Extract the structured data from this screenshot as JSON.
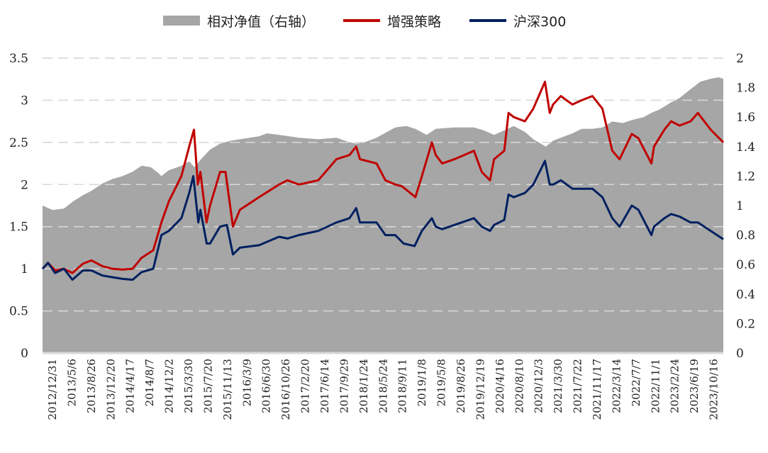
{
  "legend": [
    {
      "label": "相对净值（右轴）",
      "kind": "area",
      "color": "#a6a6a6"
    },
    {
      "label": "增强策略",
      "kind": "line",
      "color": "#c00000"
    },
    {
      "label": "沪深300",
      "kind": "line",
      "color": "#002060"
    }
  ],
  "chart_data": {
    "type": "line",
    "x_axis": {
      "type": "date",
      "range": [
        "2012-12-31",
        "2023-12-29"
      ],
      "tick_labels": [
        "2012/12/31",
        "2013/5/6",
        "2013/8/26",
        "2013/12/20",
        "2014/4/17",
        "2014/8/7",
        "2014/12/2",
        "2015/3/30",
        "2015/7/20",
        "2015/11/13",
        "2016/3/9",
        "2016/6/30",
        "2016/10/26",
        "2017/2/20",
        "2017/6/14",
        "2017/9/29",
        "2018/1/24",
        "2018/5/24",
        "2018/9/11",
        "2019/1/8",
        "2019/5/8",
        "2019/8/26",
        "2019/12/19",
        "2020/4/16",
        "2020/8/10",
        "2020/12/3",
        "2021/3/30",
        "2021/7/22",
        "2021/11/17",
        "2022/3/14",
        "2022/7/7",
        "2022/11/1",
        "2023/2/24",
        "2023/6/19",
        "2023/10/16"
      ]
    },
    "y_left": {
      "range": [
        0,
        3.5
      ],
      "ticks": [
        "0",
        "0.5",
        "1",
        "1.5",
        "2",
        "2.5",
        "3",
        "3.5"
      ]
    },
    "y_right": {
      "range": [
        0,
        2
      ],
      "ticks": [
        "0",
        "0.2",
        "0.4",
        "0.6",
        "0.8",
        "1",
        "1.2",
        "1.4",
        "1.6",
        "1.8",
        "2"
      ]
    },
    "grid": "horizontal dashed",
    "legend_position": "top",
    "series": [
      {
        "name": "相对净值（右轴）",
        "kind": "area",
        "axis": "right",
        "color": "#a6a6a6",
        "points": [
          [
            "2012-12-31",
            1.0
          ],
          [
            "2013-03-01",
            0.97
          ],
          [
            "2013-05-06",
            0.98
          ],
          [
            "2013-07-01",
            1.03
          ],
          [
            "2013-08-26",
            1.07
          ],
          [
            "2013-10-15",
            1.1
          ],
          [
            "2013-12-20",
            1.15
          ],
          [
            "2014-02-15",
            1.18
          ],
          [
            "2014-04-17",
            1.2
          ],
          [
            "2014-06-15",
            1.23
          ],
          [
            "2014-08-07",
            1.27
          ],
          [
            "2014-10-01",
            1.26
          ],
          [
            "2014-11-15",
            1.22
          ],
          [
            "2014-12-02",
            1.2
          ],
          [
            "2015-01-15",
            1.24
          ],
          [
            "2015-03-30",
            1.27
          ],
          [
            "2015-05-15",
            1.3
          ],
          [
            "2015-06-15",
            1.26
          ],
          [
            "2015-07-20",
            1.31
          ],
          [
            "2015-09-15",
            1.38
          ],
          [
            "2015-11-13",
            1.42
          ],
          [
            "2016-01-15",
            1.44
          ],
          [
            "2016-03-09",
            1.45
          ],
          [
            "2016-06-30",
            1.47
          ],
          [
            "2016-08-15",
            1.49
          ],
          [
            "2016-10-26",
            1.48
          ],
          [
            "2017-02-20",
            1.46
          ],
          [
            "2017-06-14",
            1.45
          ],
          [
            "2017-09-29",
            1.46
          ],
          [
            "2017-12-15",
            1.43
          ],
          [
            "2018-01-24",
            1.42
          ],
          [
            "2018-03-15",
            1.43
          ],
          [
            "2018-05-24",
            1.46
          ],
          [
            "2018-09-11",
            1.53
          ],
          [
            "2018-11-15",
            1.54
          ],
          [
            "2019-01-08",
            1.52
          ],
          [
            "2019-03-15",
            1.48
          ],
          [
            "2019-05-08",
            1.52
          ],
          [
            "2019-08-26",
            1.53
          ],
          [
            "2019-12-19",
            1.53
          ],
          [
            "2020-02-15",
            1.51
          ],
          [
            "2020-04-16",
            1.48
          ],
          [
            "2020-06-15",
            1.51
          ],
          [
            "2020-08-10",
            1.54
          ],
          [
            "2020-10-15",
            1.5
          ],
          [
            "2020-12-03",
            1.45
          ],
          [
            "2021-02-15",
            1.4
          ],
          [
            "2021-03-30",
            1.44
          ],
          [
            "2021-05-15",
            1.46
          ],
          [
            "2021-07-22",
            1.49
          ],
          [
            "2021-09-15",
            1.52
          ],
          [
            "2021-11-17",
            1.52
          ],
          [
            "2022-01-15",
            1.53
          ],
          [
            "2022-03-14",
            1.57
          ],
          [
            "2022-05-15",
            1.56
          ],
          [
            "2022-07-07",
            1.58
          ],
          [
            "2022-09-15",
            1.6
          ],
          [
            "2022-11-01",
            1.63
          ],
          [
            "2022-12-15",
            1.65
          ],
          [
            "2023-02-24",
            1.7
          ],
          [
            "2023-04-15",
            1.73
          ],
          [
            "2023-06-19",
            1.79
          ],
          [
            "2023-08-15",
            1.84
          ],
          [
            "2023-10-16",
            1.86
          ],
          [
            "2023-12-01",
            1.87
          ],
          [
            "2023-12-29",
            1.86
          ]
        ]
      },
      {
        "name": "增强策略",
        "kind": "line",
        "axis": "left",
        "color": "#c00000",
        "points": [
          [
            "2012-12-31",
            1.0
          ],
          [
            "2013-02-01",
            1.07
          ],
          [
            "2013-03-15",
            0.98
          ],
          [
            "2013-05-06",
            1.0
          ],
          [
            "2013-06-25",
            0.95
          ],
          [
            "2013-08-26",
            1.06
          ],
          [
            "2013-10-15",
            1.1
          ],
          [
            "2013-12-20",
            1.03
          ],
          [
            "2014-02-15",
            1.0
          ],
          [
            "2014-04-17",
            0.99
          ],
          [
            "2014-06-15",
            1.0
          ],
          [
            "2014-08-07",
            1.13
          ],
          [
            "2014-10-15",
            1.22
          ],
          [
            "2014-12-02",
            1.55
          ],
          [
            "2015-01-15",
            1.8
          ],
          [
            "2015-03-30",
            2.1
          ],
          [
            "2015-05-15",
            2.45
          ],
          [
            "2015-06-12",
            2.65
          ],
          [
            "2015-07-05",
            2.0
          ],
          [
            "2015-07-20",
            2.15
          ],
          [
            "2015-08-25",
            1.55
          ],
          [
            "2015-09-15",
            1.75
          ],
          [
            "2015-11-13",
            2.15
          ],
          [
            "2015-12-15",
            2.15
          ],
          [
            "2016-01-28",
            1.5
          ],
          [
            "2016-03-09",
            1.7
          ],
          [
            "2016-06-30",
            1.85
          ],
          [
            "2016-10-26",
            2.0
          ],
          [
            "2016-12-15",
            2.05
          ],
          [
            "2017-02-20",
            2.0
          ],
          [
            "2017-06-14",
            2.05
          ],
          [
            "2017-09-29",
            2.3
          ],
          [
            "2017-12-15",
            2.35
          ],
          [
            "2018-01-24",
            2.45
          ],
          [
            "2018-02-15",
            2.3
          ],
          [
            "2018-05-24",
            2.25
          ],
          [
            "2018-07-15",
            2.05
          ],
          [
            "2018-09-11",
            2.0
          ],
          [
            "2018-10-20",
            1.98
          ],
          [
            "2019-01-08",
            1.85
          ],
          [
            "2019-02-15",
            2.1
          ],
          [
            "2019-04-15",
            2.5
          ],
          [
            "2019-05-08",
            2.35
          ],
          [
            "2019-06-15",
            2.25
          ],
          [
            "2019-08-26",
            2.3
          ],
          [
            "2019-12-19",
            2.4
          ],
          [
            "2020-02-03",
            2.15
          ],
          [
            "2020-03-23",
            2.05
          ],
          [
            "2020-04-16",
            2.3
          ],
          [
            "2020-06-15",
            2.4
          ],
          [
            "2020-07-10",
            2.85
          ],
          [
            "2020-08-10",
            2.8
          ],
          [
            "2020-10-15",
            2.75
          ],
          [
            "2020-12-03",
            2.9
          ],
          [
            "2021-02-10",
            3.22
          ],
          [
            "2021-03-10",
            2.85
          ],
          [
            "2021-03-30",
            2.95
          ],
          [
            "2021-05-15",
            3.05
          ],
          [
            "2021-07-22",
            2.95
          ],
          [
            "2021-09-15",
            3.0
          ],
          [
            "2021-11-17",
            3.05
          ],
          [
            "2022-01-15",
            2.9
          ],
          [
            "2022-03-14",
            2.4
          ],
          [
            "2022-04-26",
            2.3
          ],
          [
            "2022-07-07",
            2.6
          ],
          [
            "2022-08-15",
            2.55
          ],
          [
            "2022-10-31",
            2.25
          ],
          [
            "2022-11-15",
            2.45
          ],
          [
            "2023-01-15",
            2.65
          ],
          [
            "2023-02-24",
            2.75
          ],
          [
            "2023-04-15",
            2.7
          ],
          [
            "2023-06-19",
            2.75
          ],
          [
            "2023-08-01",
            2.85
          ],
          [
            "2023-10-16",
            2.65
          ],
          [
            "2023-12-29",
            2.5
          ]
        ]
      },
      {
        "name": "沪深300",
        "kind": "line",
        "axis": "left",
        "color": "#002060",
        "points": [
          [
            "2012-12-31",
            1.0
          ],
          [
            "2013-02-01",
            1.07
          ],
          [
            "2013-03-15",
            0.95
          ],
          [
            "2013-05-06",
            1.0
          ],
          [
            "2013-06-25",
            0.87
          ],
          [
            "2013-08-26",
            0.98
          ],
          [
            "2013-10-15",
            0.98
          ],
          [
            "2013-12-20",
            0.92
          ],
          [
            "2014-02-15",
            0.9
          ],
          [
            "2014-04-17",
            0.88
          ],
          [
            "2014-06-15",
            0.87
          ],
          [
            "2014-08-07",
            0.96
          ],
          [
            "2014-10-15",
            1.0
          ],
          [
            "2014-12-02",
            1.4
          ],
          [
            "2015-01-15",
            1.45
          ],
          [
            "2015-03-30",
            1.6
          ],
          [
            "2015-05-15",
            1.9
          ],
          [
            "2015-06-08",
            2.1
          ],
          [
            "2015-07-08",
            1.55
          ],
          [
            "2015-07-20",
            1.7
          ],
          [
            "2015-08-26",
            1.3
          ],
          [
            "2015-09-15",
            1.3
          ],
          [
            "2015-11-13",
            1.5
          ],
          [
            "2015-12-23",
            1.52
          ],
          [
            "2016-01-28",
            1.17
          ],
          [
            "2016-03-09",
            1.25
          ],
          [
            "2016-06-30",
            1.28
          ],
          [
            "2016-10-26",
            1.38
          ],
          [
            "2016-12-15",
            1.36
          ],
          [
            "2017-02-20",
            1.4
          ],
          [
            "2017-06-14",
            1.45
          ],
          [
            "2017-09-29",
            1.55
          ],
          [
            "2017-12-15",
            1.6
          ],
          [
            "2018-01-24",
            1.72
          ],
          [
            "2018-02-15",
            1.55
          ],
          [
            "2018-05-24",
            1.55
          ],
          [
            "2018-07-15",
            1.4
          ],
          [
            "2018-09-11",
            1.4
          ],
          [
            "2018-10-30",
            1.3
          ],
          [
            "2019-01-03",
            1.27
          ],
          [
            "2019-02-15",
            1.45
          ],
          [
            "2019-04-15",
            1.6
          ],
          [
            "2019-05-08",
            1.5
          ],
          [
            "2019-06-15",
            1.47
          ],
          [
            "2019-08-26",
            1.52
          ],
          [
            "2019-12-19",
            1.6
          ],
          [
            "2020-02-03",
            1.5
          ],
          [
            "2020-03-23",
            1.45
          ],
          [
            "2020-04-16",
            1.52
          ],
          [
            "2020-06-15",
            1.58
          ],
          [
            "2020-07-10",
            1.88
          ],
          [
            "2020-08-10",
            1.85
          ],
          [
            "2020-10-15",
            1.9
          ],
          [
            "2020-12-03",
            2.0
          ],
          [
            "2021-02-10",
            2.28
          ],
          [
            "2021-03-10",
            2.0
          ],
          [
            "2021-03-30",
            2.0
          ],
          [
            "2021-05-15",
            2.05
          ],
          [
            "2021-07-22",
            1.95
          ],
          [
            "2021-09-15",
            1.95
          ],
          [
            "2021-11-17",
            1.95
          ],
          [
            "2022-01-15",
            1.85
          ],
          [
            "2022-03-14",
            1.6
          ],
          [
            "2022-04-26",
            1.5
          ],
          [
            "2022-07-07",
            1.75
          ],
          [
            "2022-08-15",
            1.7
          ],
          [
            "2022-10-31",
            1.4
          ],
          [
            "2022-11-15",
            1.5
          ],
          [
            "2023-01-15",
            1.6
          ],
          [
            "2023-02-24",
            1.65
          ],
          [
            "2023-04-15",
            1.62
          ],
          [
            "2023-06-19",
            1.55
          ],
          [
            "2023-08-01",
            1.55
          ],
          [
            "2023-10-16",
            1.45
          ],
          [
            "2023-12-29",
            1.35
          ]
        ]
      }
    ]
  }
}
